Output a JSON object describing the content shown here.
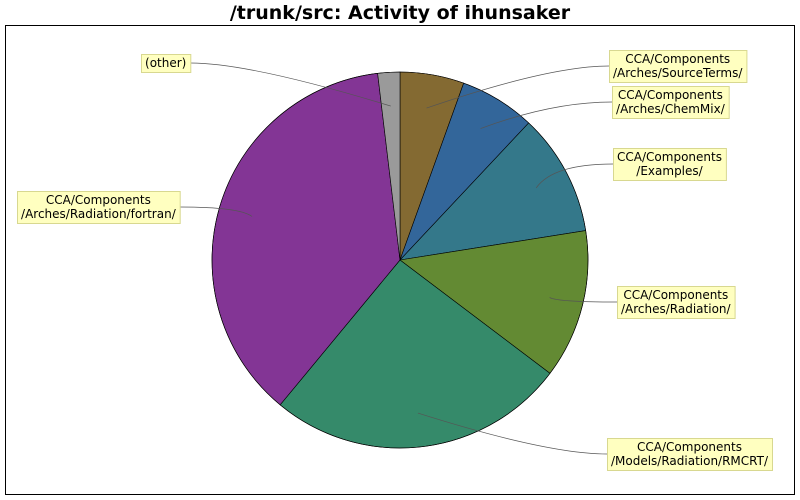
{
  "chart_data": {
    "type": "pie",
    "title": "/trunk/src: Activity of ihunsaker",
    "slices": [
      {
        "label": [
          "CCA/Components",
          "/Arches/SourceTerms/"
        ],
        "value": 5.5,
        "color": "#846a32"
      },
      {
        "label": [
          "CCA/Components",
          "/Arches/ChemMix/"
        ],
        "value": 6.5,
        "color": "#33669a"
      },
      {
        "label": [
          "CCA/Components",
          "/Examples/"
        ],
        "value": 10.5,
        "color": "#34788a"
      },
      {
        "label": [
          "CCA/Components",
          "/Arches/Radiation/"
        ],
        "value": 12.8,
        "color": "#638a33"
      },
      {
        "label": [
          "CCA/Components",
          "/Models/Radiation/RMCRT/"
        ],
        "value": 25.7,
        "color": "#358a6a"
      },
      {
        "label": [
          "CCA/Components",
          "/Arches/Radiation/fortran/"
        ],
        "value": 37.1,
        "color": "#833595"
      },
      {
        "label": [
          "(other)"
        ],
        "value": 1.9,
        "color": "#9a9a9a"
      }
    ]
  }
}
